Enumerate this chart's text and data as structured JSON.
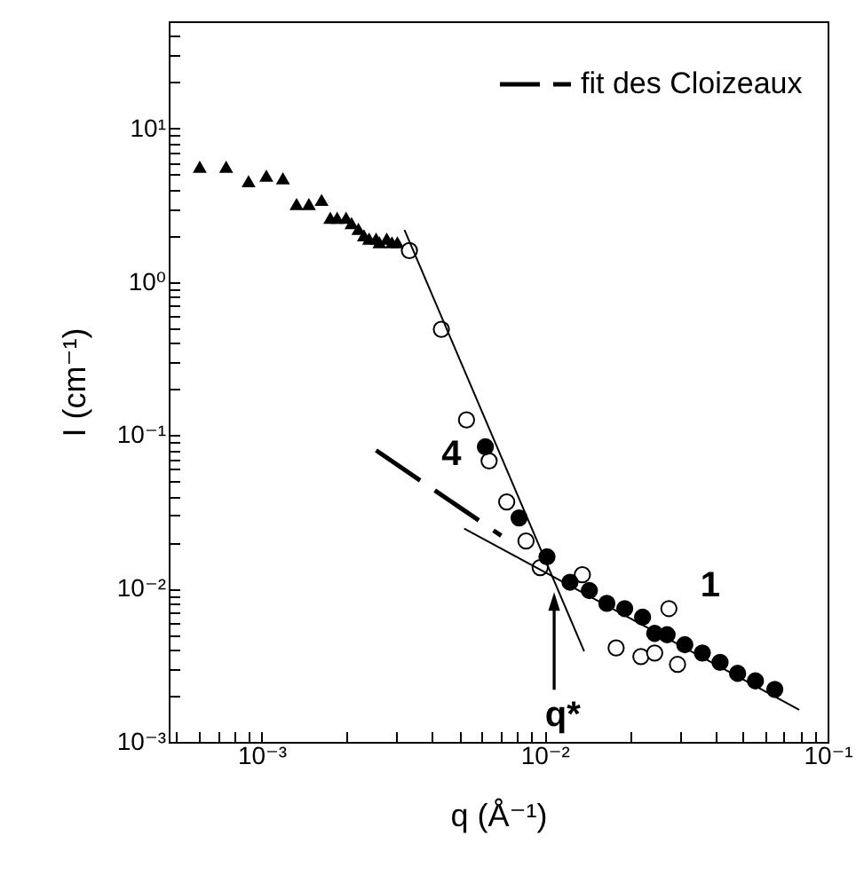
{
  "chart_data": {
    "type": "scatter",
    "xlabel": "q (Å⁻¹)",
    "ylabel": "I (cm⁻¹)",
    "log": "xy",
    "grid": false,
    "legend": "top right",
    "xlim": [
      0.00047,
      0.1
    ],
    "ylim": [
      0.001,
      50
    ],
    "xticks": [
      {
        "value": 0.0005,
        "label": null
      },
      {
        "value": 0.0006,
        "label": null
      },
      {
        "value": 0.0007,
        "label": null
      },
      {
        "value": 0.0008,
        "label": null
      },
      {
        "value": 0.0009,
        "label": null
      },
      {
        "value": 0.001,
        "label": "10⁻³"
      },
      {
        "value": 0.002,
        "label": null
      },
      {
        "value": 0.003,
        "label": null
      },
      {
        "value": 0.004,
        "label": null
      },
      {
        "value": 0.005,
        "label": null
      },
      {
        "value": 0.006,
        "label": null
      },
      {
        "value": 0.007,
        "label": null
      },
      {
        "value": 0.008,
        "label": null
      },
      {
        "value": 0.009,
        "label": null
      },
      {
        "value": 0.01,
        "label": "10⁻²"
      },
      {
        "value": 0.02,
        "label": null
      },
      {
        "value": 0.03,
        "label": null
      },
      {
        "value": 0.04,
        "label": null
      },
      {
        "value": 0.05,
        "label": null
      },
      {
        "value": 0.06,
        "label": null
      },
      {
        "value": 0.07,
        "label": null
      },
      {
        "value": 0.08,
        "label": null
      },
      {
        "value": 0.09,
        "label": null
      },
      {
        "value": 0.1,
        "label": "10⁻¹"
      }
    ],
    "yticks": [
      {
        "value": 0.001,
        "label": "10⁻³"
      },
      {
        "value": 0.002,
        "label": null
      },
      {
        "value": 0.003,
        "label": null
      },
      {
        "value": 0.004,
        "label": null
      },
      {
        "value": 0.005,
        "label": null
      },
      {
        "value": 0.006,
        "label": null
      },
      {
        "value": 0.007,
        "label": null
      },
      {
        "value": 0.008,
        "label": null
      },
      {
        "value": 0.009,
        "label": null
      },
      {
        "value": 0.01,
        "label": "10⁻²"
      },
      {
        "value": 0.02,
        "label": null
      },
      {
        "value": 0.03,
        "label": null
      },
      {
        "value": 0.04,
        "label": null
      },
      {
        "value": 0.05,
        "label": null
      },
      {
        "value": 0.06,
        "label": null
      },
      {
        "value": 0.07,
        "label": null
      },
      {
        "value": 0.08,
        "label": null
      },
      {
        "value": 0.09,
        "label": null
      },
      {
        "value": 0.1,
        "label": "10⁻¹"
      },
      {
        "value": 0.2,
        "label": null
      },
      {
        "value": 0.3,
        "label": null
      },
      {
        "value": 0.4,
        "label": null
      },
      {
        "value": 0.5,
        "label": null
      },
      {
        "value": 0.6,
        "label": null
      },
      {
        "value": 0.7,
        "label": null
      },
      {
        "value": 0.8,
        "label": null
      },
      {
        "value": 0.9,
        "label": null
      },
      {
        "value": 1,
        "label": "10⁰"
      },
      {
        "value": 2,
        "label": null
      },
      {
        "value": 3,
        "label": null
      },
      {
        "value": 4,
        "label": null
      },
      {
        "value": 5,
        "label": null
      },
      {
        "value": 6,
        "label": null
      },
      {
        "value": 7,
        "label": null
      },
      {
        "value": 8,
        "label": null
      },
      {
        "value": 9,
        "label": null
      },
      {
        "value": 10,
        "label": "10¹"
      },
      {
        "value": 20,
        "label": null
      },
      {
        "value": 30,
        "label": null
      },
      {
        "value": 40,
        "label": null
      },
      {
        "value": 50,
        "label": null
      }
    ],
    "series": [
      {
        "marker": "triangle",
        "color": "#000000",
        "x": [
          0.000605,
          0.00075,
          0.0009,
          0.00104,
          0.00119,
          0.00133,
          0.00147,
          0.00163,
          0.00175,
          0.00185,
          0.00199,
          0.00208,
          0.0022,
          0.0023,
          0.0024,
          0.00254,
          0.00261,
          0.00277,
          0.00289,
          0.00302
        ],
        "values": [
          5.6,
          5.6,
          4.5,
          4.9,
          4.7,
          3.2,
          3.2,
          3.4,
          2.6,
          2.6,
          2.6,
          2.4,
          2.2,
          2.0,
          1.9,
          1.9,
          1.8,
          1.9,
          1.8,
          1.8
        ]
      },
      {
        "marker": "circle",
        "color": "#ffffff",
        "x": [
          0.00333,
          0.00432,
          0.0053,
          0.00637,
          0.00735,
          0.0086,
          0.00965,
          0.0136,
          0.0179,
          0.0219,
          0.0245,
          0.0275,
          0.0295
        ],
        "values": [
          1.6,
          0.49,
          0.126,
          0.068,
          0.0367,
          0.0204,
          0.0137,
          0.0123,
          0.0041,
          0.0036,
          0.0038,
          0.0074,
          0.0032
        ]
      },
      {
        "marker": "circle",
        "color": "#000000",
        "x": [
          0.00618,
          0.00813,
          0.0102,
          0.0123,
          0.0144,
          0.0166,
          0.0192,
          0.0222,
          0.0245,
          0.0271,
          0.0313,
          0.0361,
          0.0417,
          0.0481,
          0.0556,
          0.0651
        ],
        "values": [
          0.084,
          0.0289,
          0.0161,
          0.011,
          0.0097,
          0.008,
          0.0074,
          0.0065,
          0.0051,
          0.005,
          0.0043,
          0.0038,
          0.0033,
          0.0028,
          0.0025,
          0.0022
        ]
      },
      {
        "type": "line",
        "color": "#000000",
        "line_style": "solid",
        "x": [
          0.0032,
          0.0138
        ],
        "values": [
          2.18,
          0.0039
        ]
      },
      {
        "type": "line",
        "color": "#000000",
        "line_style": "solid",
        "x": [
          0.0052,
          0.0794
        ],
        "values": [
          0.0246,
          0.00162
        ]
      },
      {
        "type": "line",
        "name": "fit des Cloizeaux",
        "color": "#000000",
        "line_style": "dashed",
        "x": [
          0.00254,
          0.00703
        ],
        "values": [
          0.0796,
          0.0221
        ]
      }
    ],
    "annotations": [
      "4",
      "1",
      "q*"
    ]
  }
}
